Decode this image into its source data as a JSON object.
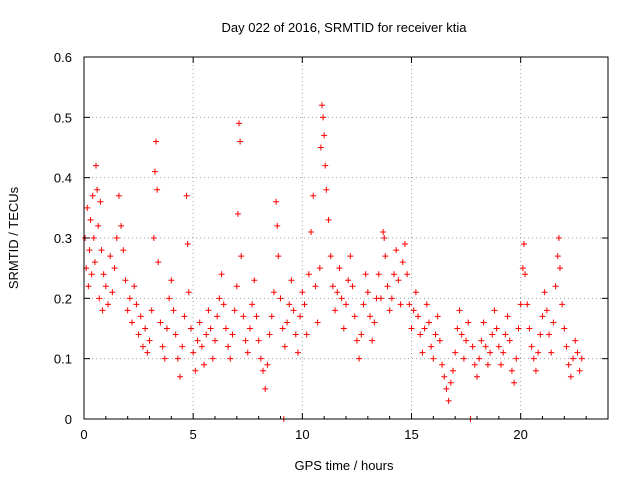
{
  "chart_data": {
    "type": "scatter",
    "title": "Day 022 of 2016, SRMTID for receiver ktia",
    "xlabel": "GPS time / hours",
    "ylabel": "SRMTID / TECUs",
    "xlim": [
      0,
      24
    ],
    "ylim": [
      0,
      0.6
    ],
    "x_ticks": [
      0,
      5,
      10,
      15,
      20
    ],
    "y_ticks": [
      0,
      0.1,
      0.2,
      0.3,
      0.4,
      0.5,
      0.6
    ],
    "x_tick_labels": [
      "0",
      "5",
      "10",
      "15",
      "20"
    ],
    "y_tick_labels": [
      "0",
      "0.1",
      "0.2",
      "0.3",
      "0.4",
      "0.5",
      "0.6"
    ],
    "grid": true,
    "marker": "plus",
    "color": "#ff0000",
    "series": [
      {
        "name": "SRMTID",
        "points": [
          [
            0.05,
            0.3
          ],
          [
            0.1,
            0.25
          ],
          [
            0.15,
            0.35
          ],
          [
            0.2,
            0.22
          ],
          [
            0.25,
            0.28
          ],
          [
            0.3,
            0.33
          ],
          [
            0.35,
            0.24
          ],
          [
            0.4,
            0.37
          ],
          [
            0.45,
            0.3
          ],
          [
            0.5,
            0.26
          ],
          [
            0.55,
            0.42
          ],
          [
            0.6,
            0.38
          ],
          [
            0.65,
            0.32
          ],
          [
            0.7,
            0.2
          ],
          [
            0.75,
            0.36
          ],
          [
            0.8,
            0.28
          ],
          [
            0.85,
            0.18
          ],
          [
            0.9,
            0.24
          ],
          [
            1.0,
            0.22
          ],
          [
            1.1,
            0.19
          ],
          [
            1.2,
            0.27
          ],
          [
            1.3,
            0.21
          ],
          [
            1.4,
            0.25
          ],
          [
            1.5,
            0.3
          ],
          [
            1.6,
            0.37
          ],
          [
            1.7,
            0.32
          ],
          [
            1.8,
            0.28
          ],
          [
            1.9,
            0.23
          ],
          [
            2.0,
            0.18
          ],
          [
            2.1,
            0.2
          ],
          [
            2.2,
            0.16
          ],
          [
            2.3,
            0.22
          ],
          [
            2.4,
            0.19
          ],
          [
            2.5,
            0.14
          ],
          [
            2.6,
            0.17
          ],
          [
            2.7,
            0.12
          ],
          [
            2.8,
            0.15
          ],
          [
            2.9,
            0.11
          ],
          [
            3.0,
            0.13
          ],
          [
            3.1,
            0.18
          ],
          [
            3.2,
            0.3
          ],
          [
            3.25,
            0.41
          ],
          [
            3.3,
            0.46
          ],
          [
            3.35,
            0.38
          ],
          [
            3.4,
            0.26
          ],
          [
            3.5,
            0.16
          ],
          [
            3.6,
            0.12
          ],
          [
            3.7,
            0.1
          ],
          [
            3.8,
            0.15
          ],
          [
            3.9,
            0.2
          ],
          [
            4.0,
            0.23
          ],
          [
            4.1,
            0.18
          ],
          [
            4.2,
            0.14
          ],
          [
            4.3,
            0.1
          ],
          [
            4.4,
            0.07
          ],
          [
            4.5,
            0.12
          ],
          [
            4.6,
            0.17
          ],
          [
            4.7,
            0.37
          ],
          [
            4.75,
            0.29
          ],
          [
            4.8,
            0.21
          ],
          [
            4.9,
            0.15
          ],
          [
            5.0,
            0.11
          ],
          [
            5.1,
            0.08
          ],
          [
            5.2,
            0.13
          ],
          [
            5.3,
            0.16
          ],
          [
            5.4,
            0.12
          ],
          [
            5.5,
            0.09
          ],
          [
            5.6,
            0.14
          ],
          [
            5.7,
            0.18
          ],
          [
            5.8,
            0.15
          ],
          [
            5.9,
            0.1
          ],
          [
            6.0,
            0.13
          ],
          [
            6.1,
            0.17
          ],
          [
            6.2,
            0.2
          ],
          [
            6.3,
            0.24
          ],
          [
            6.4,
            0.19
          ],
          [
            6.5,
            0.15
          ],
          [
            6.6,
            0.12
          ],
          [
            6.7,
            0.1
          ],
          [
            6.8,
            0.14
          ],
          [
            6.9,
            0.18
          ],
          [
            7.0,
            0.22
          ],
          [
            7.05,
            0.34
          ],
          [
            7.1,
            0.49
          ],
          [
            7.15,
            0.46
          ],
          [
            7.2,
            0.27
          ],
          [
            7.3,
            0.17
          ],
          [
            7.4,
            0.13
          ],
          [
            7.5,
            0.11
          ],
          [
            7.6,
            0.15
          ],
          [
            7.7,
            0.19
          ],
          [
            7.8,
            0.23
          ],
          [
            7.9,
            0.17
          ],
          [
            8.0,
            0.13
          ],
          [
            8.1,
            0.1
          ],
          [
            8.2,
            0.08
          ],
          [
            8.3,
            0.05
          ],
          [
            8.4,
            0.09
          ],
          [
            8.5,
            0.14
          ],
          [
            8.6,
            0.17
          ],
          [
            8.7,
            0.21
          ],
          [
            8.8,
            0.36
          ],
          [
            8.85,
            0.32
          ],
          [
            8.9,
            0.27
          ],
          [
            9.0,
            0.2
          ],
          [
            9.1,
            0.15
          ],
          [
            9.15,
            0.0
          ],
          [
            9.2,
            0.12
          ],
          [
            9.3,
            0.16
          ],
          [
            9.4,
            0.19
          ],
          [
            9.5,
            0.23
          ],
          [
            9.6,
            0.18
          ],
          [
            9.7,
            0.14
          ],
          [
            9.8,
            0.11
          ],
          [
            9.9,
            0.17
          ],
          [
            10.0,
            0.21
          ],
          [
            10.1,
            0.19
          ],
          [
            10.2,
            0.14
          ],
          [
            10.3,
            0.24
          ],
          [
            10.4,
            0.31
          ],
          [
            10.5,
            0.37
          ],
          [
            10.6,
            0.22
          ],
          [
            10.7,
            0.16
          ],
          [
            10.8,
            0.25
          ],
          [
            10.85,
            0.45
          ],
          [
            10.9,
            0.52
          ],
          [
            10.95,
            0.5
          ],
          [
            11.0,
            0.47
          ],
          [
            11.05,
            0.42
          ],
          [
            11.1,
            0.38
          ],
          [
            11.2,
            0.33
          ],
          [
            11.3,
            0.27
          ],
          [
            11.4,
            0.22
          ],
          [
            11.5,
            0.18
          ],
          [
            11.6,
            0.21
          ],
          [
            11.7,
            0.25
          ],
          [
            11.8,
            0.2
          ],
          [
            11.9,
            0.15
          ],
          [
            12.0,
            0.19
          ],
          [
            12.1,
            0.23
          ],
          [
            12.2,
            0.27
          ],
          [
            12.3,
            0.22
          ],
          [
            12.4,
            0.17
          ],
          [
            12.5,
            0.13
          ],
          [
            12.6,
            0.1
          ],
          [
            12.7,
            0.14
          ],
          [
            12.8,
            0.19
          ],
          [
            12.9,
            0.24
          ],
          [
            13.0,
            0.21
          ],
          [
            13.1,
            0.17
          ],
          [
            13.2,
            0.13
          ],
          [
            13.3,
            0.16
          ],
          [
            13.4,
            0.2
          ],
          [
            13.5,
            0.24
          ],
          [
            13.6,
            0.2
          ],
          [
            13.7,
            0.31
          ],
          [
            13.75,
            0.3
          ],
          [
            13.8,
            0.27
          ],
          [
            13.9,
            0.22
          ],
          [
            14.0,
            0.18
          ],
          [
            14.1,
            0.2
          ],
          [
            14.2,
            0.24
          ],
          [
            14.3,
            0.28
          ],
          [
            14.4,
            0.23
          ],
          [
            14.5,
            0.19
          ],
          [
            14.6,
            0.26
          ],
          [
            14.7,
            0.29
          ],
          [
            14.8,
            0.24
          ],
          [
            14.9,
            0.19
          ],
          [
            15.0,
            0.15
          ],
          [
            15.1,
            0.18
          ],
          [
            15.2,
            0.21
          ],
          [
            15.3,
            0.17
          ],
          [
            15.4,
            0.14
          ],
          [
            15.5,
            0.11
          ],
          [
            15.6,
            0.15
          ],
          [
            15.7,
            0.19
          ],
          [
            15.8,
            0.16
          ],
          [
            15.9,
            0.12
          ],
          [
            16.0,
            0.1
          ],
          [
            16.1,
            0.14
          ],
          [
            16.2,
            0.17
          ],
          [
            16.3,
            0.13
          ],
          [
            16.4,
            0.09
          ],
          [
            16.5,
            0.07
          ],
          [
            16.6,
            0.05
          ],
          [
            16.7,
            0.03
          ],
          [
            16.8,
            0.06
          ],
          [
            16.9,
            0.08
          ],
          [
            17.0,
            0.11
          ],
          [
            17.1,
            0.15
          ],
          [
            17.2,
            0.18
          ],
          [
            17.3,
            0.14
          ],
          [
            17.4,
            0.1
          ],
          [
            17.5,
            0.13
          ],
          [
            17.6,
            0.16
          ],
          [
            17.7,
            0.0
          ],
          [
            17.8,
            0.12
          ],
          [
            17.9,
            0.09
          ],
          [
            18.0,
            0.07
          ],
          [
            18.1,
            0.1
          ],
          [
            18.2,
            0.13
          ],
          [
            18.3,
            0.16
          ],
          [
            18.4,
            0.12
          ],
          [
            18.5,
            0.09
          ],
          [
            18.6,
            0.11
          ],
          [
            18.7,
            0.14
          ],
          [
            18.8,
            0.18
          ],
          [
            18.9,
            0.15
          ],
          [
            19.0,
            0.12
          ],
          [
            19.1,
            0.09
          ],
          [
            19.2,
            0.11
          ],
          [
            19.3,
            0.14
          ],
          [
            19.4,
            0.17
          ],
          [
            19.5,
            0.13
          ],
          [
            19.6,
            0.08
          ],
          [
            19.7,
            0.06
          ],
          [
            19.8,
            0.1
          ],
          [
            19.9,
            0.15
          ],
          [
            20.0,
            0.19
          ],
          [
            20.1,
            0.25
          ],
          [
            20.15,
            0.29
          ],
          [
            20.2,
            0.24
          ],
          [
            20.3,
            0.19
          ],
          [
            20.4,
            0.15
          ],
          [
            20.5,
            0.12
          ],
          [
            20.6,
            0.1
          ],
          [
            20.7,
            0.08
          ],
          [
            20.8,
            0.11
          ],
          [
            20.9,
            0.14
          ],
          [
            21.0,
            0.17
          ],
          [
            21.1,
            0.21
          ],
          [
            21.2,
            0.18
          ],
          [
            21.3,
            0.14
          ],
          [
            21.4,
            0.11
          ],
          [
            21.5,
            0.16
          ],
          [
            21.6,
            0.22
          ],
          [
            21.7,
            0.27
          ],
          [
            21.75,
            0.3
          ],
          [
            21.8,
            0.25
          ],
          [
            21.9,
            0.19
          ],
          [
            22.0,
            0.15
          ],
          [
            22.1,
            0.12
          ],
          [
            22.2,
            0.09
          ],
          [
            22.3,
            0.07
          ],
          [
            22.4,
            0.1
          ],
          [
            22.5,
            0.13
          ],
          [
            22.6,
            0.11
          ],
          [
            22.7,
            0.08
          ],
          [
            22.8,
            0.1
          ]
        ]
      }
    ]
  }
}
